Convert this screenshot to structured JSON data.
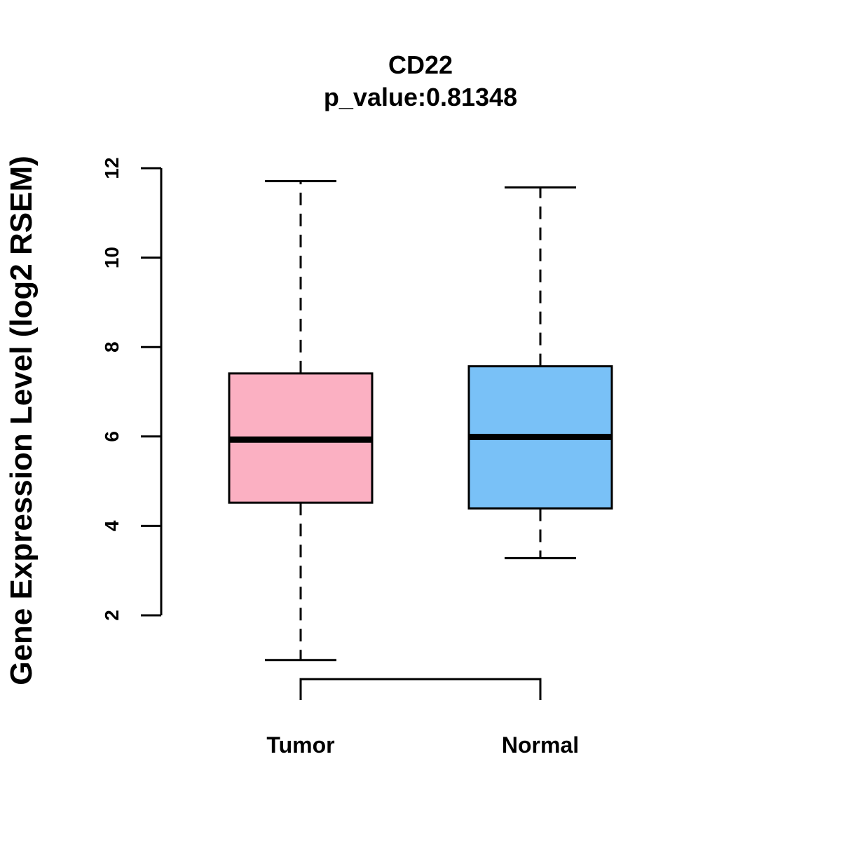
{
  "chart_data": {
    "type": "boxplot",
    "title": "CD22",
    "subtitle": "p_value:0.81348",
    "xlabel": "",
    "ylabel": "Gene Expression Level (log2 RSEM)",
    "yticks": [
      2,
      4,
      6,
      8,
      10,
      12
    ],
    "categories": [
      "Tumor",
      "Normal"
    ],
    "colors": [
      "#fbb0c2",
      "#79c1f7"
    ],
    "boxes": [
      {
        "name": "Tumor",
        "whisker_low": 1.0,
        "q1": 4.52,
        "median": 5.93,
        "q3": 7.41,
        "whisker_high": 11.71
      },
      {
        "name": "Normal",
        "whisker_low": 3.28,
        "q1": 4.39,
        "median": 5.99,
        "q3": 7.57,
        "whisker_high": 11.57
      }
    ],
    "significance_bracket": {
      "from": "Tumor",
      "to": "Normal"
    },
    "grid": false,
    "legend": "none"
  }
}
